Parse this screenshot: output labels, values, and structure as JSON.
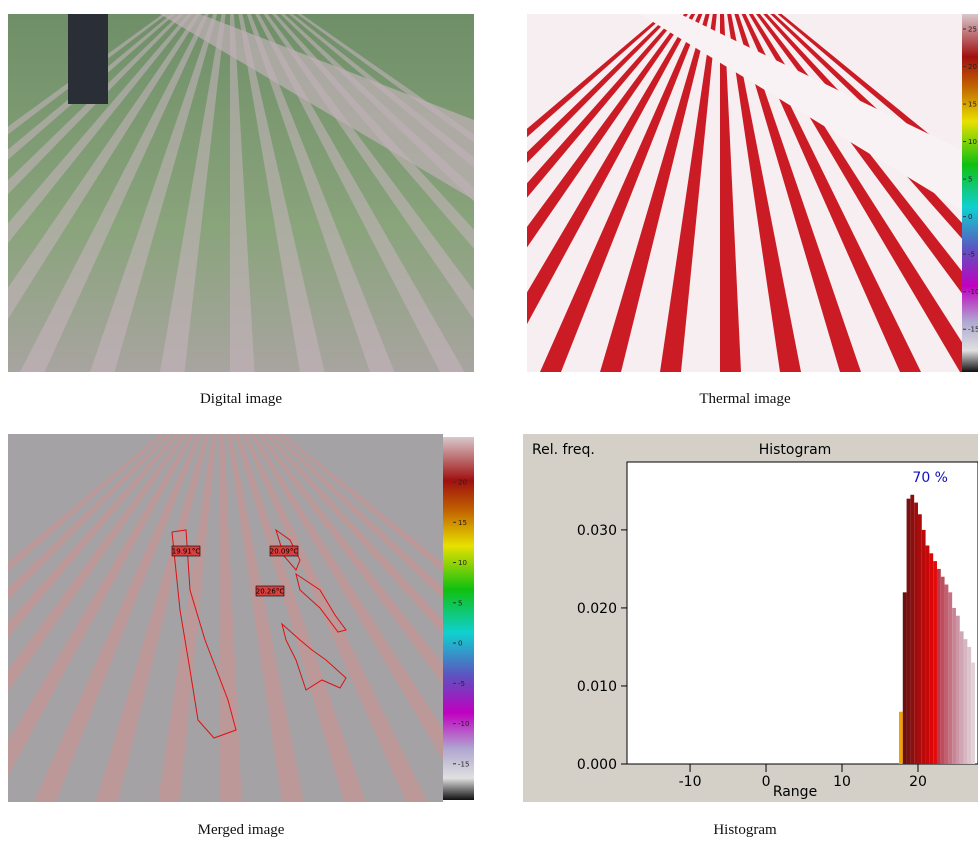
{
  "captions": [
    "Digital image",
    "Thermal image",
    "Merged image",
    "Histogram"
  ],
  "thermal_colorbar": {
    "lim": [
      -20.7,
      27
    ],
    "ticks": [
      25,
      20,
      15,
      10,
      5,
      0,
      -5,
      -10,
      -15
    ]
  },
  "merged_colorbar": {
    "lim": [
      -19.5,
      25.6
    ],
    "ticks": [
      20,
      15,
      10,
      5,
      0,
      -5,
      -10,
      -15
    ]
  },
  "merged_labels": [
    "19.91°C",
    "20.09°C",
    "20.26°C"
  ],
  "chart_data": {
    "type": "histogram",
    "title": "Histogram",
    "y_label": "Rel. freq.",
    "x_label": "Range",
    "annotation": "70 %",
    "bins": [
      17.5,
      18,
      18.5,
      19,
      19.5,
      20,
      20.5,
      21,
      21.5,
      22,
      22.5,
      23,
      23.5,
      24,
      24.5,
      25,
      25.5,
      26,
      26.5,
      27,
      27.5
    ],
    "values": [
      0.0067,
      0.022,
      0.034,
      0.0345,
      0.0335,
      0.032,
      0.03,
      0.028,
      0.027,
      0.026,
      0.025,
      0.024,
      0.023,
      0.022,
      0.02,
      0.019,
      0.017,
      0.016,
      0.015,
      0.013
    ],
    "colors": [
      "#f5a000",
      "#6b0f0f",
      "#7a1010",
      "#8a1010",
      "#9a0e0e",
      "#aa0c0c",
      "#b80a0a",
      "#c80808",
      "#d80808",
      "#e40a0a",
      "#b83a4a",
      "#bc4e5e",
      "#c06070",
      "#c47282",
      "#c88494",
      "#cc96a4",
      "#d0a6b2",
      "#d6b6c0",
      "#dcc4cc",
      "#e2d2d8"
    ],
    "xlim": [
      -18.3,
      27.9
    ],
    "ylim": [
      0,
      0.0387
    ],
    "xticks": [
      -10,
      0,
      10,
      20
    ],
    "yticks": [
      {
        "value": 0,
        "label": "0.000"
      },
      {
        "value": 0.01,
        "label": "0.010"
      },
      {
        "value": 0.02,
        "label": "0.020"
      },
      {
        "value": 0.03,
        "label": "0.030"
      }
    ]
  }
}
